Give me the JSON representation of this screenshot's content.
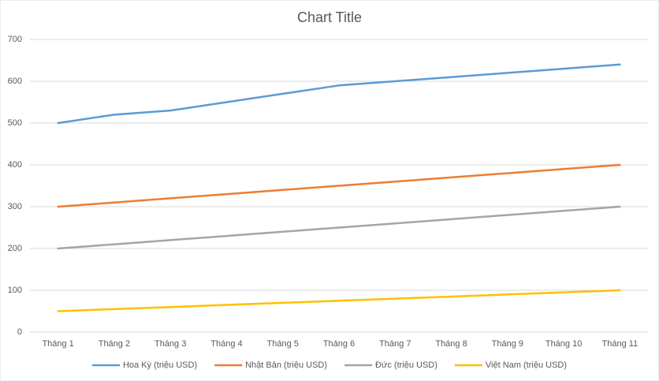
{
  "chart_data": {
    "type": "line",
    "title": "Chart Title",
    "categories": [
      "Tháng 1",
      "Tháng 2",
      "Tháng 3",
      "Tháng 4",
      "Tháng 5",
      "Tháng 6",
      "Tháng 7",
      "Tháng 8",
      "Tháng 9",
      "Tháng 10",
      "Tháng 11"
    ],
    "series": [
      {
        "name": "Hoa Kỳ (triệu USD)",
        "color": "#5b9bd5",
        "values": [
          500,
          520,
          530,
          550,
          570,
          590,
          600,
          610,
          620,
          630,
          640
        ]
      },
      {
        "name": "Nhật Bản (triệu USD)",
        "color": "#ed7d31",
        "values": [
          300,
          310,
          320,
          330,
          340,
          350,
          360,
          370,
          380,
          390,
          400
        ]
      },
      {
        "name": "Đức (triệu USD)",
        "color": "#a5a5a5",
        "values": [
          200,
          210,
          220,
          230,
          240,
          250,
          260,
          270,
          280,
          290,
          300
        ]
      },
      {
        "name": "Việt Nam (triệu USD)",
        "color": "#ffc000",
        "values": [
          50,
          55,
          60,
          65,
          70,
          75,
          80,
          85,
          90,
          95,
          100
        ]
      }
    ],
    "ylim": [
      0,
      700
    ],
    "yticks": [
      0,
      100,
      200,
      300,
      400,
      500,
      600,
      700
    ],
    "grid": true,
    "legend": "bottom"
  }
}
